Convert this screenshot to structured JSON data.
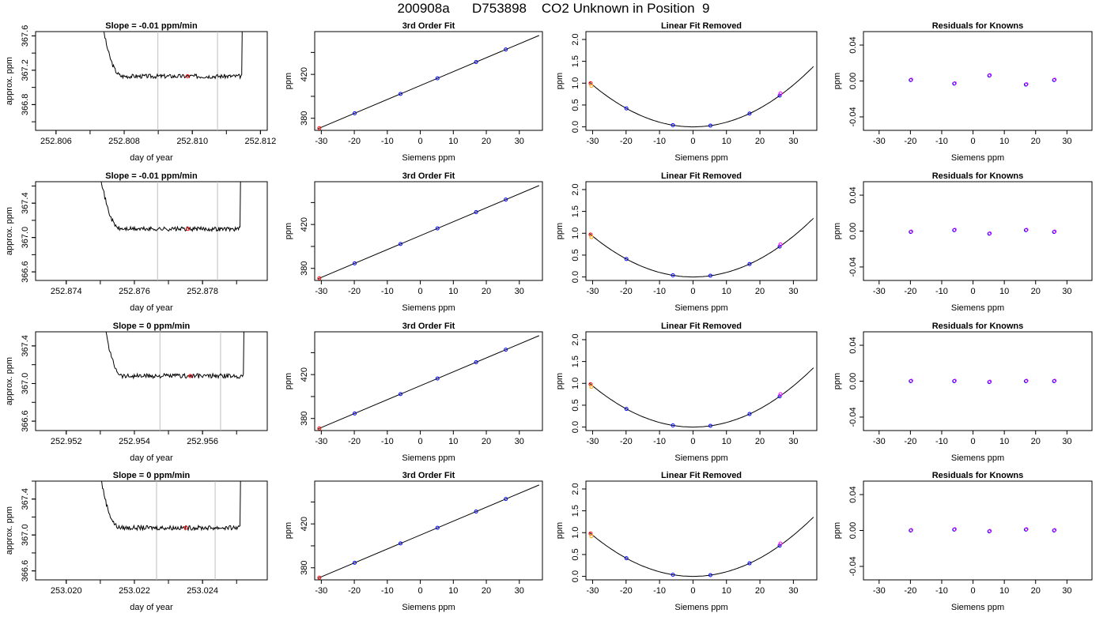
{
  "page": {
    "title": "200908a      D753898    CO2 Unknown in Position  9"
  },
  "colors": {
    "axis": "#000000",
    "trace": "#000000",
    "vline": "#bebebe",
    "point_red": "#ff0000",
    "point_blue": "#0000ff",
    "point_orange": "#ffa500",
    "point_magenta": "#ff00ff"
  },
  "chart_data": [
    {
      "type": "line",
      "row": 0,
      "col": 0,
      "title": "Slope =  -0.01  ppm/min",
      "xlabel": "day of year",
      "ylabel": "approx. ppm",
      "xlim": [
        252.8054,
        252.8122
      ],
      "ylim": [
        366.5,
        367.65
      ],
      "xticks": [
        "252.806",
        "252.808",
        "252.810",
        "252.812"
      ],
      "yticks": [
        "366.8",
        "367.2",
        "367.6"
      ],
      "vlines": [
        252.80899,
        252.81074
      ],
      "ref_point": [
        252.80986,
        367.13
      ],
      "trace_level": 367.13,
      "trace_start": 252.80732,
      "trace_end": 252.81145
    },
    {
      "type": "line",
      "row": 0,
      "col": 1,
      "title": "3rd Order Fit",
      "xlabel": "Siemens ppm",
      "ylabel": "ppm",
      "xlim": [
        -32,
        37
      ],
      "ylim": [
        369,
        459
      ],
      "xticks": [
        "-30",
        "-20",
        "-10",
        "0",
        "10",
        "20",
        "30"
      ],
      "yticks": [
        "380",
        "420"
      ],
      "points_x": [
        -30.6,
        -19.9,
        -6.0,
        5.2,
        16.9,
        25.9
      ],
      "fit_line": [
        [
          -31,
          370.5
        ],
        [
          36,
          455.5
        ]
      ]
    },
    {
      "type": "scatter",
      "row": 0,
      "col": 2,
      "title": "Linear Fit Removed",
      "xlabel": "Siemens ppm",
      "ylabel": "ppm",
      "xlim": [
        -32,
        37
      ],
      "ylim": [
        -0.08,
        2.18
      ],
      "xticks": [
        "-30",
        "-20",
        "-10",
        "0",
        "10",
        "20",
        "30"
      ],
      "yticks": [
        "0.0",
        "0.5",
        "1.0",
        "1.5",
        "2.0"
      ],
      "curve_coeff": 0.00111,
      "points_x": [
        -30.6,
        -19.9,
        -6.0,
        5.2,
        16.9,
        25.9
      ]
    },
    {
      "type": "scatter",
      "row": 0,
      "col": 3,
      "title": "Residuals for Knowns",
      "xlabel": "Siemens ppm",
      "ylabel": "ppm",
      "xlim": [
        -35,
        38
      ],
      "ylim": [
        -0.055,
        0.055
      ],
      "xticks": [
        "-30",
        "-20",
        "-10",
        "0",
        "10",
        "20",
        "30"
      ],
      "yticks": [
        "-0.04",
        "0.00",
        "0.04"
      ],
      "points_x": [
        -19.9,
        -6.0,
        5.2,
        16.9,
        25.9
      ],
      "points_y": [
        0.001,
        -0.003,
        0.006,
        -0.004,
        0.001
      ]
    },
    {
      "type": "line",
      "row": 1,
      "col": 0,
      "title": "Slope =  -0.01  ppm/min",
      "xlabel": "day of year",
      "ylabel": "approx. ppm",
      "xlim": [
        252.8731,
        252.8799
      ],
      "ylim": [
        366.5,
        367.65
      ],
      "xticks": [
        "252.874",
        "252.876",
        "252.878"
      ],
      "yticks": [
        "366.6",
        "367.0",
        "367.4"
      ],
      "vlines": [
        252.87668,
        252.87844
      ],
      "ref_point": [
        252.87757,
        367.1
      ],
      "trace_level": 367.1,
      "trace_start": 252.87497,
      "trace_end": 252.8791
    },
    {
      "type": "line",
      "row": 1,
      "col": 1,
      "title": "3rd Order Fit",
      "xlabel": "Siemens ppm",
      "ylabel": "ppm",
      "xlim": [
        -32,
        37
      ],
      "ylim": [
        369,
        459
      ],
      "xticks": [
        "-30",
        "-20",
        "-10",
        "0",
        "10",
        "20",
        "30"
      ],
      "yticks": [
        "380",
        "420"
      ],
      "points_x": [
        -30.6,
        -19.9,
        -6.0,
        5.2,
        16.9,
        25.9
      ],
      "fit_line": [
        [
          -31,
          370.5
        ],
        [
          36,
          455.5
        ]
      ]
    },
    {
      "type": "scatter",
      "row": 1,
      "col": 2,
      "title": "Linear Fit Removed",
      "xlabel": "Siemens ppm",
      "ylabel": "ppm",
      "xlim": [
        -32,
        37
      ],
      "ylim": [
        -0.08,
        2.18
      ],
      "xticks": [
        "-30",
        "-20",
        "-10",
        "0",
        "10",
        "20",
        "30"
      ],
      "yticks": [
        "0.0",
        "0.5",
        "1.0",
        "1.5",
        "2.0"
      ],
      "curve_coeff": 0.00108,
      "points_x": [
        -30.6,
        -19.9,
        -6.0,
        5.2,
        16.9,
        25.9
      ]
    },
    {
      "type": "scatter",
      "row": 1,
      "col": 3,
      "title": "Residuals for Knowns",
      "xlabel": "Siemens ppm",
      "ylabel": "ppm",
      "xlim": [
        -35,
        38
      ],
      "ylim": [
        -0.055,
        0.055
      ],
      "xticks": [
        "-30",
        "-20",
        "-10",
        "0",
        "10",
        "20",
        "30"
      ],
      "yticks": [
        "-0.04",
        "0.00",
        "0.04"
      ],
      "points_x": [
        -19.9,
        -6.0,
        5.2,
        16.9,
        25.9
      ],
      "points_y": [
        -0.001,
        0.001,
        -0.003,
        0.001,
        -0.001
      ]
    },
    {
      "type": "line",
      "row": 2,
      "col": 0,
      "title": "Slope =  0  ppm/min",
      "xlabel": "day of year",
      "ylabel": "approx. ppm",
      "xlim": [
        252.9511,
        252.9579
      ],
      "ylim": [
        366.5,
        367.55
      ],
      "xticks": [
        "252.952",
        "252.954",
        "252.956"
      ],
      "yticks": [
        "366.6",
        "367.0",
        "367.4"
      ],
      "vlines": [
        252.95475,
        252.95653
      ],
      "ref_point": [
        252.95564,
        367.08
      ],
      "trace_level": 367.08,
      "trace_start": 252.95305,
      "trace_end": 252.9572
    },
    {
      "type": "line",
      "row": 2,
      "col": 1,
      "title": "3rd Order Fit",
      "xlabel": "Siemens ppm",
      "ylabel": "ppm",
      "xlim": [
        -32,
        37
      ],
      "ylim": [
        369,
        459
      ],
      "xticks": [
        "-30",
        "-20",
        "-10",
        "0",
        "10",
        "20",
        "30"
      ],
      "yticks": [
        "380",
        "420"
      ],
      "points_x": [
        -30.6,
        -19.9,
        -6.0,
        5.2,
        16.9,
        25.9
      ],
      "fit_line": [
        [
          -31,
          370.5
        ],
        [
          36,
          455.5
        ]
      ]
    },
    {
      "type": "scatter",
      "row": 2,
      "col": 2,
      "title": "Linear Fit Removed",
      "xlabel": "Siemens ppm",
      "ylabel": "ppm",
      "xlim": [
        -32,
        37
      ],
      "ylim": [
        -0.08,
        2.18
      ],
      "xticks": [
        "-30",
        "-20",
        "-10",
        "0",
        "10",
        "20",
        "30"
      ],
      "yticks": [
        "0.0",
        "0.5",
        "1.0",
        "1.5",
        "2.0"
      ],
      "curve_coeff": 0.00109,
      "points_x": [
        -30.6,
        -19.9,
        -6.0,
        5.2,
        16.9,
        25.9
      ]
    },
    {
      "type": "scatter",
      "row": 2,
      "col": 3,
      "title": "Residuals for Knowns",
      "xlabel": "Siemens ppm",
      "ylabel": "ppm",
      "xlim": [
        -35,
        38
      ],
      "ylim": [
        -0.055,
        0.055
      ],
      "xticks": [
        "-30",
        "-20",
        "-10",
        "0",
        "10",
        "20",
        "30"
      ],
      "yticks": [
        "-0.04",
        "0.00",
        "0.04"
      ],
      "points_x": [
        -19.9,
        -6.0,
        5.2,
        16.9,
        25.9
      ],
      "points_y": [
        0.0,
        0.0,
        -0.001,
        0.0,
        0.0
      ]
    },
    {
      "type": "line",
      "row": 3,
      "col": 0,
      "title": "Slope =  0  ppm/min",
      "xlabel": "day of year",
      "ylabel": "approx. ppm",
      "xlim": [
        253.0191,
        253.0259
      ],
      "ylim": [
        366.5,
        367.6
      ],
      "xticks": [
        "253.020",
        "253.022",
        "253.024"
      ],
      "yticks": [
        "366.6",
        "367.0",
        "367.4"
      ],
      "vlines": [
        253.02265,
        253.02437
      ],
      "ref_point": [
        253.02351,
        367.08
      ],
      "trace_level": 367.08,
      "trace_start": 253.02095,
      "trace_end": 253.0251
    },
    {
      "type": "line",
      "row": 3,
      "col": 1,
      "title": "3rd Order Fit",
      "xlabel": "Siemens ppm",
      "ylabel": "ppm",
      "xlim": [
        -32,
        37
      ],
      "ylim": [
        369,
        459
      ],
      "xticks": [
        "-30",
        "-20",
        "-10",
        "0",
        "10",
        "20",
        "30"
      ],
      "yticks": [
        "380",
        "420"
      ],
      "points_x": [
        -30.6,
        -19.9,
        -6.0,
        5.2,
        16.9,
        25.9
      ],
      "fit_line": [
        [
          -31,
          370.5
        ],
        [
          36,
          455.5
        ]
      ]
    },
    {
      "type": "scatter",
      "row": 3,
      "col": 2,
      "title": "Linear Fit Removed",
      "xlabel": "Siemens ppm",
      "ylabel": "ppm",
      "xlim": [
        -32,
        37
      ],
      "ylim": [
        -0.08,
        2.18
      ],
      "xticks": [
        "-30",
        "-20",
        "-10",
        "0",
        "10",
        "20",
        "30"
      ],
      "yticks": [
        "0.0",
        "0.5",
        "1.0",
        "1.5",
        "2.0"
      ],
      "curve_coeff": 0.00109,
      "points_x": [
        -30.6,
        -19.9,
        -6.0,
        5.2,
        16.9,
        25.9
      ]
    },
    {
      "type": "scatter",
      "row": 3,
      "col": 3,
      "title": "Residuals for Knowns",
      "xlabel": "Siemens ppm",
      "ylabel": "ppm",
      "xlim": [
        -35,
        38
      ],
      "ylim": [
        -0.055,
        0.055
      ],
      "xticks": [
        "-30",
        "-20",
        "-10",
        "0",
        "10",
        "20",
        "30"
      ],
      "yticks": [
        "-0.04",
        "0.00",
        "0.04"
      ],
      "points_x": [
        -19.9,
        -6.0,
        5.2,
        16.9,
        25.9
      ],
      "points_y": [
        0.0,
        0.001,
        -0.001,
        0.001,
        0.0
      ]
    }
  ]
}
